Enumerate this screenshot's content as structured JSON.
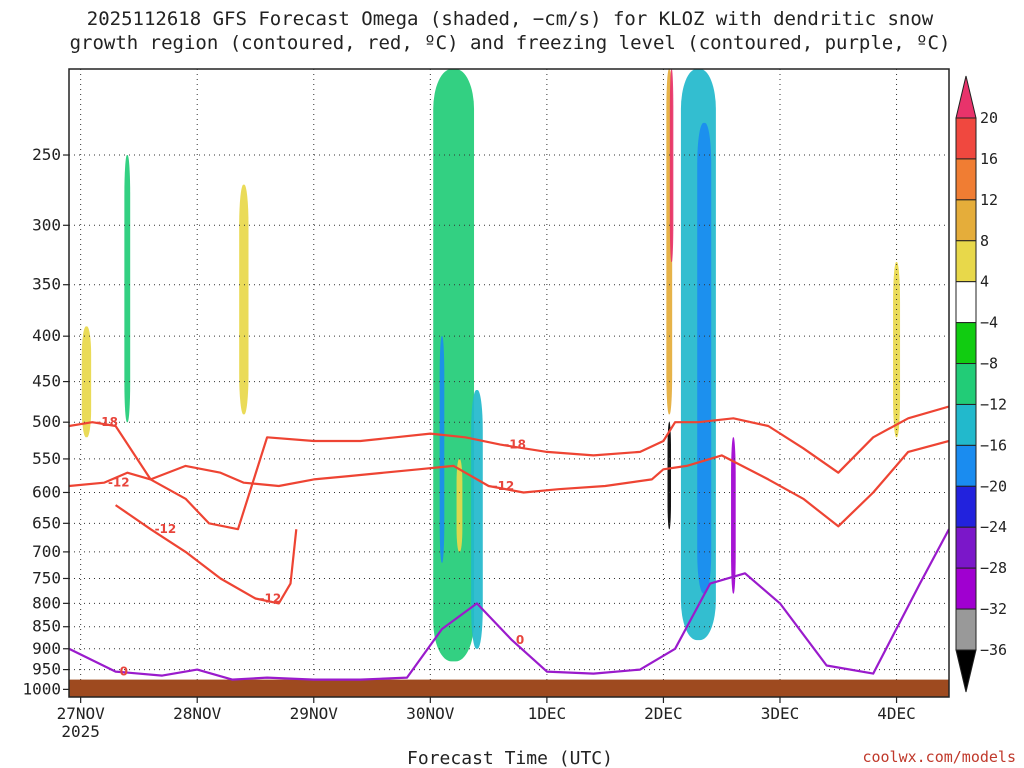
{
  "chart_data": {
    "type": "heatmap",
    "title_line1": "2025112618 GFS Forecast Omega (shaded, −cm/s) for KLOZ with dendritic snow",
    "title_line2": "growth region (contoured, red, ºC) and freezing level (contoured, purple, ºC)",
    "xlabel": "Forecast Time (UTC)",
    "credit": "coolwx.com/models",
    "x_ticks": [
      {
        "label": "27NOV",
        "sub": "2025",
        "day": 0
      },
      {
        "label": "28NOV",
        "sub": "",
        "day": 1
      },
      {
        "label": "29NOV",
        "sub": "",
        "day": 2
      },
      {
        "label": "30NOV",
        "sub": "",
        "day": 3
      },
      {
        "label": "1DEC",
        "sub": "",
        "day": 4
      },
      {
        "label": "2DEC",
        "sub": "",
        "day": 5
      },
      {
        "label": "3DEC",
        "sub": "",
        "day": 6
      },
      {
        "label": "4DEC",
        "sub": "",
        "day": 7
      }
    ],
    "x_range_days": [
      -0.1,
      7.45
    ],
    "y_ticks": [
      "250",
      "300",
      "350",
      "400",
      "450",
      "500",
      "550",
      "600",
      "650",
      "700",
      "750",
      "800",
      "850",
      "900",
      "950",
      "1000"
    ],
    "y_range_hpa": [
      200,
      1020
    ],
    "y_axis": "pressure (hPa), logarithmic, inverted",
    "ground_level_hpa": 975,
    "colorbar": {
      "levels": [
        "20",
        "16",
        "12",
        "8",
        "4",
        "−4",
        "−8",
        "−12",
        "−16",
        "−20",
        "−24",
        "−28",
        "−32",
        "−36"
      ],
      "colors": [
        "#e8336b",
        "#f0483f",
        "#f07d33",
        "#e5ad3a",
        "#e8d84a",
        "#ffffff",
        "#11cc11",
        "#22cc77",
        "#22b9cc",
        "#1a8cf0",
        "#2222dd",
        "#7b17c9",
        "#a000d0",
        "#999999",
        "#000000"
      ]
    },
    "omega_blobs": [
      {
        "day": 0.1,
        "top": 205,
        "bottom": 870,
        "width": 0.17,
        "value": 4
      },
      {
        "day": 0.05,
        "top": 390,
        "bottom": 520,
        "width": 0.08,
        "value": 8
      },
      {
        "day": 0.4,
        "top": 250,
        "bottom": 500,
        "width": 0.05,
        "value": -8
      },
      {
        "day": 1.5,
        "top": 200,
        "bottom": 700,
        "width": 0.28,
        "value": 4
      },
      {
        "day": 1.4,
        "top": 270,
        "bottom": 490,
        "width": 0.08,
        "value": 8
      },
      {
        "day": 2.0,
        "top": 240,
        "bottom": 620,
        "width": 0.1,
        "value": 4
      },
      {
        "day": 3.2,
        "top": 200,
        "bottom": 930,
        "width": 0.35,
        "value": -8
      },
      {
        "day": 3.1,
        "top": 400,
        "bottom": 720,
        "width": 0.04,
        "value": -16
      },
      {
        "day": 3.4,
        "top": 460,
        "bottom": 900,
        "width": 0.1,
        "value": -12
      },
      {
        "day": 3.25,
        "top": 550,
        "bottom": 700,
        "width": 0.05,
        "value": 8
      },
      {
        "day": 4.6,
        "top": 200,
        "bottom": 520,
        "width": 0.12,
        "value": 4
      },
      {
        "day": 5.05,
        "top": 200,
        "bottom": 490,
        "width": 0.05,
        "value": 12
      },
      {
        "day": 5.07,
        "top": 200,
        "bottom": 330,
        "width": 0.03,
        "value": 20
      },
      {
        "day": 5.05,
        "top": 500,
        "bottom": 660,
        "width": 0.03,
        "value": -36
      },
      {
        "day": 5.3,
        "top": 200,
        "bottom": 880,
        "width": 0.3,
        "value": -12
      },
      {
        "day": 5.35,
        "top": 230,
        "bottom": 780,
        "width": 0.12,
        "value": -16
      },
      {
        "day": 5.6,
        "top": 520,
        "bottom": 780,
        "width": 0.04,
        "value": -28
      },
      {
        "day": 5.85,
        "top": 200,
        "bottom": 360,
        "width": 0.2,
        "value": 4
      },
      {
        "day": 6.9,
        "top": 270,
        "bottom": 860,
        "width": 0.22,
        "value": 4
      },
      {
        "day": 7.0,
        "top": 330,
        "bottom": 520,
        "width": 0.06,
        "value": 8
      }
    ],
    "dgz_contours": [
      {
        "label": "-12",
        "days": [
          -0.1,
          0.2,
          0.4,
          0.6,
          0.9,
          1.2,
          1.4,
          1.7,
          2.0,
          2.3,
          2.6,
          2.9,
          3.2,
          3.5,
          3.8,
          4.1,
          4.5,
          4.9,
          5.0,
          5.2,
          5.5,
          5.9,
          6.2,
          6.5,
          6.8,
          7.1,
          7.45
        ],
        "hpa": [
          590,
          585,
          570,
          580,
          560,
          570,
          585,
          590,
          580,
          575,
          570,
          565,
          560,
          590,
          600,
          595,
          590,
          580,
          565,
          560,
          545,
          580,
          610,
          655,
          600,
          540,
          525
        ]
      },
      {
        "label": "-18",
        "days": [
          -0.1,
          0.1,
          0.3,
          0.6,
          0.9,
          1.1,
          1.35,
          1.6,
          2.0,
          2.4,
          2.7,
          3.0,
          3.3,
          3.6,
          4.0,
          4.4,
          4.8,
          5.0,
          5.1,
          5.3,
          5.6,
          5.9,
          6.2,
          6.5,
          6.8,
          7.1,
          7.45
        ],
        "hpa": [
          505,
          500,
          505,
          580,
          610,
          650,
          660,
          520,
          525,
          525,
          520,
          515,
          520,
          530,
          540,
          545,
          540,
          525,
          500,
          500,
          495,
          505,
          535,
          570,
          520,
          495,
          480
        ]
      },
      {
        "label": "-12",
        "days": [
          0.3,
          0.6,
          0.9,
          1.2,
          1.5,
          1.7,
          1.8,
          1.85
        ],
        "hpa": [
          620,
          660,
          700,
          750,
          790,
          800,
          760,
          660
        ]
      }
    ],
    "freezing_level": [
      {
        "label": "0",
        "days": [
          -0.1,
          0.3,
          0.7,
          1.0,
          1.3,
          1.6,
          2.0,
          2.4,
          2.8,
          3.1,
          3.4,
          3.7,
          4.0,
          4.4,
          4.8,
          5.1,
          5.4,
          5.7,
          6.0,
          6.4,
          6.8,
          7.2,
          7.45
        ],
        "hpa": [
          900,
          955,
          965,
          950,
          975,
          970,
          975,
          975,
          970,
          855,
          800,
          880,
          955,
          960,
          950,
          900,
          760,
          740,
          800,
          940,
          960,
          760,
          660
        ]
      }
    ]
  }
}
